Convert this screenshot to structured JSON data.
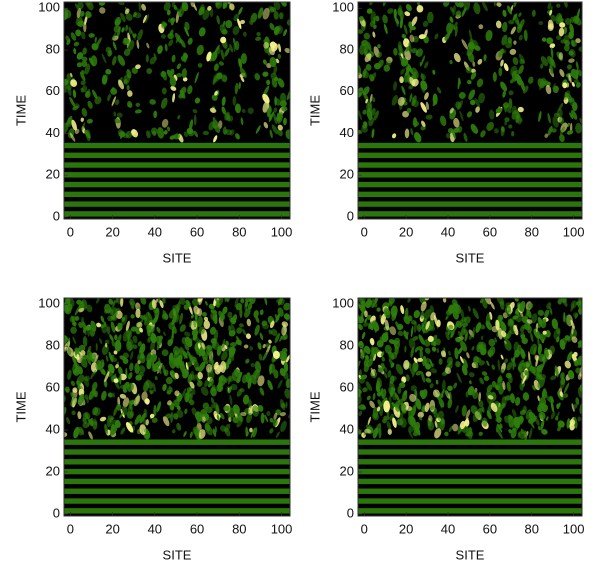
{
  "chart_data": [
    {
      "type": "heatmap",
      "xlabel": "SITE",
      "ylabel": "TIME",
      "xlim": [
        -3,
        104
      ],
      "ylim": [
        -1,
        103
      ],
      "xticks": [
        0,
        20,
        40,
        60,
        80,
        100
      ],
      "yticks": [
        0,
        20,
        40,
        60,
        80,
        100
      ],
      "colors": [
        "#000000",
        "#2e7d0c",
        "#f2f08a"
      ]
    },
    {
      "type": "heatmap",
      "xlabel": "SITE",
      "ylabel": "TIME",
      "xlim": [
        -3,
        104
      ],
      "ylim": [
        -1,
        103
      ],
      "xticks": [
        0,
        20,
        40,
        60,
        80,
        100
      ],
      "yticks": [
        0,
        20,
        40,
        60,
        80,
        100
      ],
      "colors": [
        "#000000",
        "#2e7d0c",
        "#f2f08a"
      ]
    },
    {
      "type": "heatmap",
      "xlabel": "SITE",
      "ylabel": "TIME",
      "xlim": [
        -3,
        104
      ],
      "ylim": [
        -1,
        103
      ],
      "xticks": [
        0,
        20,
        40,
        60,
        80,
        100
      ],
      "yticks": [
        0,
        20,
        40,
        60,
        80,
        100
      ],
      "colors": [
        "#000000",
        "#2e7d0c",
        "#f2f08a"
      ]
    },
    {
      "type": "heatmap",
      "xlabel": "SITE",
      "ylabel": "TIME",
      "xlim": [
        -3,
        104
      ],
      "ylim": [
        -1,
        103
      ],
      "xticks": [
        0,
        20,
        40,
        60,
        80,
        100
      ],
      "yticks": [
        0,
        20,
        40,
        60,
        80,
        100
      ],
      "colors": [
        "#000000",
        "#2e7d0c",
        "#f2f08a"
      ]
    }
  ]
}
